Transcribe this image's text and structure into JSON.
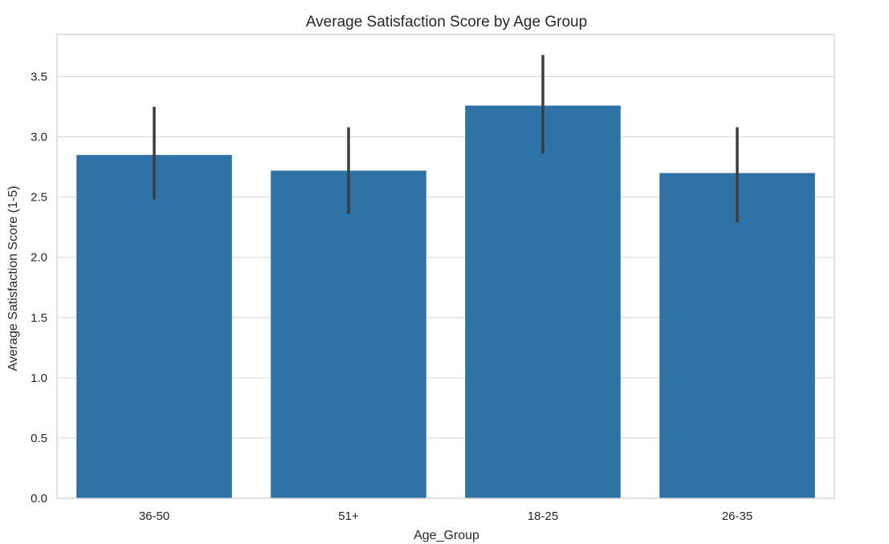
{
  "chart_data": {
    "type": "bar",
    "title": "Average Satisfaction Score by Age Group",
    "xlabel": "Age_Group",
    "ylabel": "Average Satisfaction Score (1-5)",
    "categories": [
      "36-50",
      "51+",
      "18-25",
      "26-35"
    ],
    "values": [
      2.85,
      2.72,
      3.26,
      2.7
    ],
    "error_bars": [
      {
        "low": 2.48,
        "high": 3.25
      },
      {
        "low": 2.36,
        "high": 3.08
      },
      {
        "low": 2.86,
        "high": 3.68
      },
      {
        "low": 2.29,
        "high": 3.08
      }
    ],
    "ylim": [
      0,
      3.85
    ],
    "yticks": [
      0.0,
      0.5,
      1.0,
      1.5,
      2.0,
      2.5,
      3.0,
      3.5
    ],
    "ytick_labels": [
      "0.0",
      "0.5",
      "1.0",
      "1.5",
      "2.0",
      "2.5",
      "3.0",
      "3.5"
    ],
    "grid": "horizontal",
    "colors": {
      "bar": "#2f73a6",
      "error_bar": "#3d3d3d",
      "grid": "#d5d5d5",
      "frame": "#cccccc"
    }
  }
}
